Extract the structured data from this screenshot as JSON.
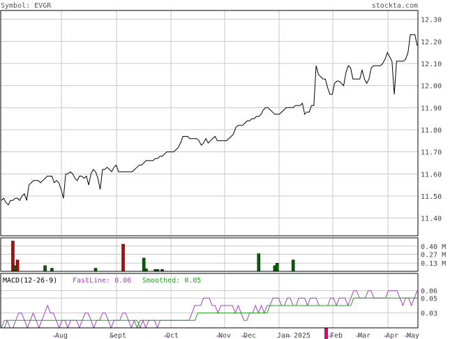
{
  "header": {
    "symbol_label": "Symbol: EVGR",
    "site_label": "stockta.com"
  },
  "colors": {
    "grid": "#c8c8c8",
    "frame": "#000000",
    "price_line": "#000000",
    "volume_up": "#006400",
    "volume_down": "#cc0000",
    "macd_fast": "#a040c0",
    "macd_smooth": "#1aa31a",
    "macd_label": "#000000",
    "fast_label": "#a040c0",
    "smooth_label": "#1aa31a",
    "marker": "#e0006a"
  },
  "x_axis": {
    "labels": [
      "Aug",
      "Sept",
      "Oct",
      "Nov",
      "Dec",
      "Jan 2025",
      "Feb",
      "Mar",
      "Apr",
      "May"
    ]
  },
  "chart_data": [
    {
      "type": "line",
      "title": "",
      "series_name": "",
      "x_unit": "trading day index (Jul 2024 - May 2025)",
      "y_ticks": [
        "11.40",
        "11.50",
        "11.60",
        "11.70",
        "11.80",
        "11.90",
        "12.00",
        "12.10",
        "12.20",
        "12.30"
      ],
      "ylim": [
        11.32,
        12.34
      ],
      "grid": true,
      "values": [
        11.48,
        11.49,
        11.47,
        11.46,
        11.48,
        11.48,
        11.49,
        11.49,
        11.48,
        11.5,
        11.51,
        11.48,
        11.55,
        11.56,
        11.57,
        11.57,
        11.57,
        11.56,
        11.57,
        11.58,
        11.59,
        11.59,
        11.59,
        11.56,
        11.57,
        11.56,
        11.53,
        11.49,
        11.6,
        11.6,
        11.61,
        11.6,
        11.58,
        11.57,
        11.59,
        11.59,
        11.58,
        11.59,
        11.55,
        11.6,
        11.62,
        11.61,
        11.58,
        11.53,
        11.62,
        11.62,
        11.63,
        11.62,
        11.61,
        11.63,
        11.64,
        11.61,
        11.61,
        11.61,
        11.61,
        11.61,
        11.61,
        11.61,
        11.62,
        11.63,
        11.64,
        11.64,
        11.65,
        11.66,
        11.66,
        11.66,
        11.66,
        11.67,
        11.67,
        11.68,
        11.68,
        11.69,
        11.7,
        11.7,
        11.7,
        11.7,
        11.71,
        11.72,
        11.74,
        11.77,
        11.77,
        11.77,
        11.76,
        11.76,
        11.76,
        11.76,
        11.75,
        11.73,
        11.74,
        11.76,
        11.74,
        11.75,
        11.76,
        11.77,
        11.75,
        11.75,
        11.75,
        11.75,
        11.75,
        11.76,
        11.77,
        11.78,
        11.81,
        11.82,
        11.82,
        11.82,
        11.83,
        11.84,
        11.84,
        11.85,
        11.85,
        11.86,
        11.86,
        11.87,
        11.89,
        11.9,
        11.9,
        11.89,
        11.88,
        11.87,
        11.87,
        11.87,
        11.88,
        11.89,
        11.9,
        11.9,
        11.9,
        11.9,
        11.91,
        11.91,
        11.91,
        11.92,
        11.87,
        11.88,
        11.88,
        11.91,
        11.91,
        12.09,
        12.05,
        12.04,
        12.03,
        12.03,
        11.99,
        11.96,
        11.96,
        12.01,
        12.02,
        12.02,
        12.01,
        12.0,
        12.06,
        12.09,
        12.08,
        12.03,
        12.03,
        12.03,
        12.03,
        12.07,
        12.03,
        12.01,
        12.03,
        12.08,
        12.09,
        12.09,
        12.09,
        12.09,
        12.1,
        12.12,
        12.15,
        12.13,
        12.11,
        11.96,
        12.11,
        12.11,
        12.11,
        12.11,
        12.12,
        12.15,
        12.23,
        12.23,
        12.23,
        12.18
      ]
    },
    {
      "type": "bar",
      "title": "",
      "y_unit": "M",
      "y_ticks": [
        "0.13 M",
        "0.27 M",
        "0.40 M"
      ],
      "ylim": [
        0,
        0.53
      ],
      "bars": [
        {
          "day": 5,
          "value": 0.48,
          "color_key": "volume_down"
        },
        {
          "day": 6,
          "value": 0.09,
          "color_key": "volume_up"
        },
        {
          "day": 7,
          "value": 0.18,
          "color_key": "volume_down"
        },
        {
          "day": 19,
          "value": 0.09,
          "color_key": "volume_up"
        },
        {
          "day": 22,
          "value": 0.05,
          "color_key": "volume_up"
        },
        {
          "day": 41,
          "value": 0.05,
          "color_key": "volume_up"
        },
        {
          "day": 53,
          "value": 0.43,
          "color_key": "volume_down"
        },
        {
          "day": 62,
          "value": 0.21,
          "color_key": "volume_up"
        },
        {
          "day": 63,
          "value": 0.04,
          "color_key": "volume_up"
        },
        {
          "day": 67,
          "value": 0.03,
          "color_key": "volume_up"
        },
        {
          "day": 68,
          "value": 0.03,
          "color_key": "volume_up"
        },
        {
          "day": 70,
          "value": 0.03,
          "color_key": "volume_up"
        },
        {
          "day": 112,
          "value": 0.28,
          "color_key": "volume_up"
        },
        {
          "day": 119,
          "value": 0.09,
          "color_key": "volume_up"
        },
        {
          "day": 120,
          "value": 0.13,
          "color_key": "volume_up"
        },
        {
          "day": 127,
          "value": 0.18,
          "color_key": "volume_up"
        }
      ]
    },
    {
      "type": "line",
      "title": "MACD(12-26-9)",
      "y_ticks": [
        "0.03",
        "0.05",
        "0.06"
      ],
      "ylim": [
        0.01,
        0.07
      ],
      "series": [
        {
          "name": "FastLine: 0.06",
          "color_key": "macd_fast",
          "values": [
            0.01,
            0.02,
            0.02,
            0.01,
            0.01,
            0.02,
            0.03,
            0.03,
            0.02,
            0.01,
            0.02,
            0.03,
            0.02,
            0.01,
            0.02,
            0.03,
            0.04,
            0.03,
            0.03,
            0.02,
            0.01,
            0.02,
            0.02,
            0.01,
            0.02,
            0.02,
            0.02,
            0.01,
            0.02,
            0.03,
            0.03,
            0.02,
            0.01,
            0.02,
            0.02,
            0.03,
            0.03,
            0.02,
            0.01,
            0.02,
            0.02,
            0.02,
            0.03,
            0.03,
            0.02,
            0.01,
            0.02,
            0.02,
            0.01,
            0.02,
            0.01,
            0.02,
            0.02,
            0.02,
            0.01,
            0.02,
            0.02,
            0.02,
            0.02,
            0.02,
            0.02,
            0.02,
            0.02,
            0.02,
            0.02,
            0.02,
            0.03,
            0.04,
            0.04,
            0.04,
            0.05,
            0.05,
            0.05,
            0.04,
            0.04,
            0.03,
            0.04,
            0.04,
            0.04,
            0.04,
            0.04,
            0.03,
            0.04,
            0.03,
            0.02,
            0.02,
            0.03,
            0.03,
            0.04,
            0.03,
            0.04,
            0.03,
            0.04,
            0.04,
            0.05,
            0.05,
            0.05,
            0.04,
            0.04,
            0.05,
            0.05,
            0.04,
            0.04,
            0.05,
            0.05,
            0.05,
            0.04,
            0.05,
            0.05,
            0.05,
            0.04,
            0.04,
            0.04,
            0.04,
            0.05,
            0.05,
            0.04,
            0.05,
            0.05,
            0.05,
            0.04,
            0.05,
            0.06,
            0.06,
            0.05,
            0.05,
            0.05,
            0.06,
            0.06,
            0.05,
            0.05,
            0.05,
            0.05,
            0.05,
            0.06,
            0.06,
            0.06,
            0.06,
            0.05,
            0.04,
            0.05,
            0.05,
            0.04,
            0.05,
            0.06
          ]
        },
        {
          "name": "Smoothed: 0.05",
          "color_key": "macd_smooth",
          "values": [
            0.01,
            0.01,
            0.02,
            0.02,
            0.02,
            0.02,
            0.02,
            0.02,
            0.02,
            0.02,
            0.02,
            0.02,
            0.02,
            0.02,
            0.02,
            0.02,
            0.02,
            0.02,
            0.02,
            0.02,
            0.02,
            0.02,
            0.02,
            0.02,
            0.02,
            0.02,
            0.02,
            0.02,
            0.02,
            0.02,
            0.02,
            0.02,
            0.02,
            0.02,
            0.02,
            0.02,
            0.02,
            0.02,
            0.02,
            0.02,
            0.02,
            0.02,
            0.02,
            0.02,
            0.02,
            0.02,
            0.02,
            0.01,
            0.02,
            0.02,
            0.02,
            0.02,
            0.02,
            0.02,
            0.02,
            0.02,
            0.02,
            0.02,
            0.02,
            0.02,
            0.02,
            0.02,
            0.02,
            0.02,
            0.02,
            0.02,
            0.02,
            0.02,
            0.03,
            0.03,
            0.03,
            0.03,
            0.03,
            0.03,
            0.03,
            0.03,
            0.03,
            0.03,
            0.03,
            0.03,
            0.03,
            0.03,
            0.03,
            0.03,
            0.03,
            0.03,
            0.03,
            0.03,
            0.03,
            0.03,
            0.03,
            0.03,
            0.03,
            0.04,
            0.04,
            0.04,
            0.04,
            0.04,
            0.04,
            0.04,
            0.04,
            0.04,
            0.04,
            0.04,
            0.04,
            0.04,
            0.04,
            0.04,
            0.04,
            0.04,
            0.04,
            0.04,
            0.04,
            0.04,
            0.04,
            0.04,
            0.04,
            0.04,
            0.04,
            0.04,
            0.04,
            0.04,
            0.05,
            0.05,
            0.05,
            0.05,
            0.05,
            0.05,
            0.05,
            0.05,
            0.05,
            0.05,
            0.05,
            0.05,
            0.05,
            0.05,
            0.05,
            0.05,
            0.05,
            0.05,
            0.05,
            0.05,
            0.05,
            0.05,
            0.05
          ]
        }
      ],
      "fast_label": "FastLine: 0.06",
      "smooth_label": "Smoothed: 0.05"
    }
  ]
}
